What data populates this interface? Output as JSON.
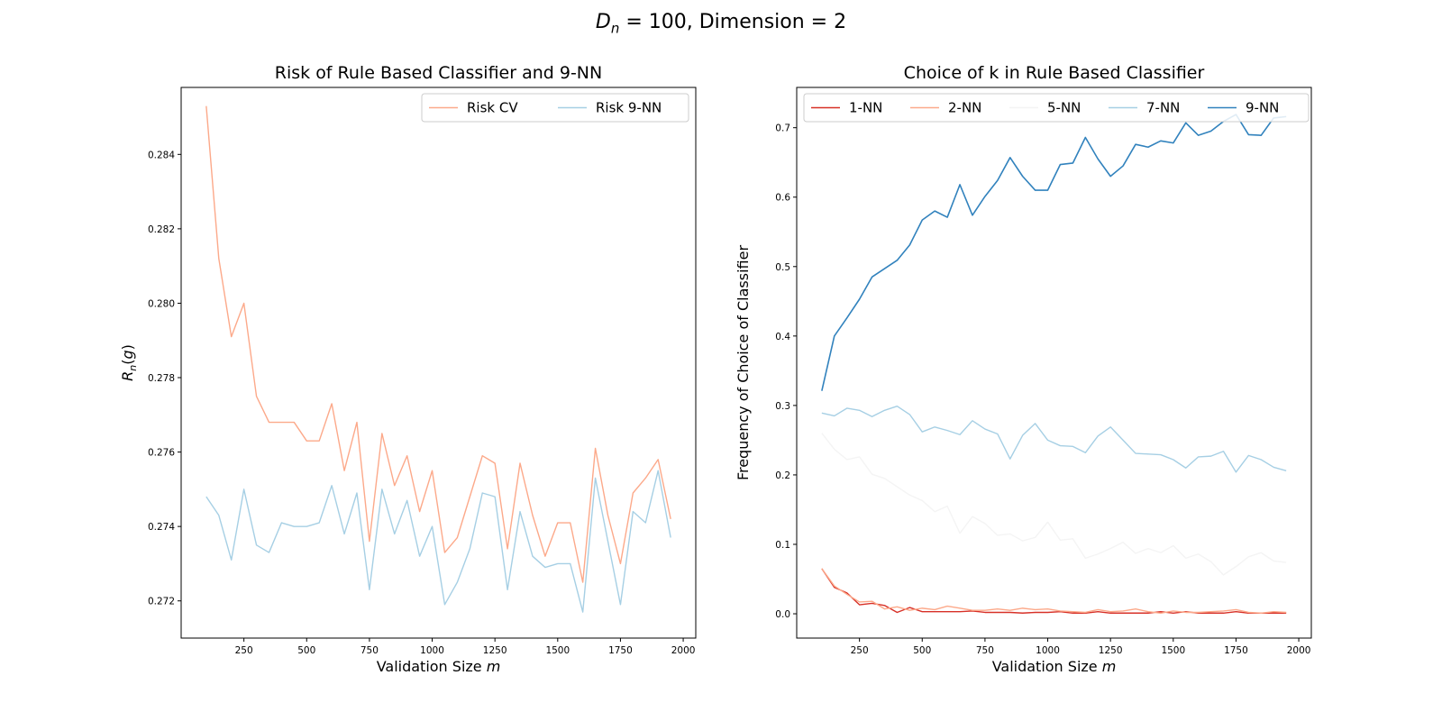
{
  "suptitle": {
    "lhs_symbol": "D",
    "lhs_subscript": "n",
    "rest": " = 100, Dimension = 2"
  },
  "chart_data": [
    {
      "type": "line",
      "title": "Risk of Rule Based Classifier and 9-NN",
      "xlabel": "Validation Size m",
      "ylabel": "R_n(g)",
      "xlim": [
        0,
        2050
      ],
      "ylim": [
        0.271,
        0.2858
      ],
      "xticks": [
        250,
        500,
        750,
        1000,
        1250,
        1500,
        1750,
        2000
      ],
      "yticks": [
        0.272,
        0.274,
        0.276,
        0.278,
        0.28,
        0.282,
        0.284
      ],
      "ytick_labels": [
        "0.272",
        "0.274",
        "0.276",
        "0.278",
        "0.280",
        "0.282",
        "0.284"
      ],
      "legend_position": "upper-right",
      "x": [
        100,
        150,
        200,
        250,
        300,
        350,
        400,
        450,
        500,
        550,
        600,
        650,
        700,
        750,
        800,
        850,
        900,
        950,
        1000,
        1050,
        1100,
        1150,
        1200,
        1250,
        1300,
        1350,
        1400,
        1450,
        1500,
        1550,
        1600,
        1650,
        1700,
        1750,
        1800,
        1850,
        1900,
        1950
      ],
      "series": [
        {
          "name": "Risk CV",
          "color": "#fca98a",
          "values": [
            0.2853,
            0.2812,
            0.2791,
            0.28,
            0.2775,
            0.2768,
            0.2768,
            0.2768,
            0.2763,
            0.2763,
            0.2773,
            0.2755,
            0.2768,
            0.2736,
            0.2765,
            0.2751,
            0.2759,
            0.2744,
            0.2755,
            0.2733,
            0.2737,
            0.2748,
            0.2759,
            0.2757,
            0.2734,
            0.2757,
            0.2743,
            0.2732,
            0.2741,
            0.2741,
            0.2725,
            0.2761,
            0.2743,
            0.273,
            0.2749,
            0.2753,
            0.2758,
            0.2742
          ]
        },
        {
          "name": "Risk 9-NN",
          "color": "#a6cfe4",
          "values": [
            0.2748,
            0.2743,
            0.2731,
            0.275,
            0.2735,
            0.2733,
            0.2741,
            0.274,
            0.274,
            0.2741,
            0.2751,
            0.2738,
            0.2749,
            0.2723,
            0.275,
            0.2738,
            0.2747,
            0.2732,
            0.274,
            0.2719,
            0.2725,
            0.2734,
            0.2749,
            0.2748,
            0.2723,
            0.2744,
            0.2732,
            0.2729,
            0.273,
            0.273,
            0.2717,
            0.2753,
            0.2736,
            0.2719,
            0.2744,
            0.2741,
            0.2755,
            0.2737
          ]
        }
      ]
    },
    {
      "type": "line",
      "title": "Choice of k in Rule Based Classifier",
      "xlabel": "Validation Size m",
      "ylabel": "Frequency of Choice of Classifier",
      "xlim": [
        0,
        2050
      ],
      "ylim": [
        -0.035,
        0.758
      ],
      "xticks": [
        250,
        500,
        750,
        1000,
        1250,
        1500,
        1750,
        2000
      ],
      "yticks": [
        0.0,
        0.1,
        0.2,
        0.3,
        0.4,
        0.5,
        0.6,
        0.7
      ],
      "ytick_labels": [
        "0.0",
        "0.1",
        "0.2",
        "0.3",
        "0.4",
        "0.5",
        "0.6",
        "0.7"
      ],
      "legend_position": "top",
      "x": [
        100,
        150,
        200,
        250,
        300,
        350,
        400,
        450,
        500,
        550,
        600,
        650,
        700,
        750,
        800,
        850,
        900,
        950,
        1000,
        1050,
        1100,
        1150,
        1200,
        1250,
        1300,
        1350,
        1400,
        1450,
        1500,
        1550,
        1600,
        1650,
        1700,
        1750,
        1800,
        1850,
        1900,
        1950
      ],
      "series": [
        {
          "name": "1-NN",
          "color": "#d73027",
          "values": [
            0.065,
            0.038,
            0.03,
            0.013,
            0.015,
            0.012,
            0.002,
            0.009,
            0.003,
            0.003,
            0.003,
            0.003,
            0.004,
            0.002,
            0.002,
            0.002,
            0.001,
            0.002,
            0.002,
            0.003,
            0.001,
            0.001,
            0.003,
            0.001,
            0.001,
            0.001,
            0.001,
            0.003,
            0.001,
            0.003,
            0.001,
            0.001,
            0.001,
            0.003,
            0.001,
            0.001,
            0.001,
            0.001
          ]
        },
        {
          "name": "2-NN",
          "color": "#fca98a",
          "values": [
            0.065,
            0.04,
            0.028,
            0.017,
            0.018,
            0.007,
            0.01,
            0.005,
            0.008,
            0.006,
            0.011,
            0.008,
            0.005,
            0.005,
            0.007,
            0.005,
            0.008,
            0.006,
            0.007,
            0.004,
            0.003,
            0.002,
            0.006,
            0.003,
            0.004,
            0.007,
            0.003,
            0.001,
            0.004,
            0.002,
            0.002,
            0.003,
            0.004,
            0.006,
            0.002,
            0.001,
            0.003,
            0.002
          ]
        },
        {
          "name": "5-NN",
          "color": "#f4f4f4",
          "values": [
            0.26,
            0.237,
            0.222,
            0.226,
            0.201,
            0.195,
            0.183,
            0.171,
            0.163,
            0.147,
            0.155,
            0.116,
            0.14,
            0.13,
            0.113,
            0.115,
            0.105,
            0.11,
            0.132,
            0.106,
            0.108,
            0.08,
            0.086,
            0.094,
            0.103,
            0.087,
            0.094,
            0.088,
            0.098,
            0.08,
            0.086,
            0.075,
            0.056,
            0.068,
            0.082,
            0.088,
            0.076,
            0.074
          ]
        },
        {
          "name": "7-NN",
          "color": "#a6cfe4",
          "values": [
            0.289,
            0.285,
            0.296,
            0.293,
            0.284,
            0.293,
            0.299,
            0.287,
            0.262,
            0.269,
            0.264,
            0.258,
            0.278,
            0.266,
            0.259,
            0.223,
            0.257,
            0.274,
            0.25,
            0.242,
            0.241,
            0.232,
            0.256,
            0.269,
            0.25,
            0.231,
            0.23,
            0.229,
            0.222,
            0.21,
            0.226,
            0.227,
            0.234,
            0.204,
            0.228,
            0.222,
            0.211,
            0.206
          ]
        },
        {
          "name": "9-NN",
          "color": "#3182bd",
          "values": [
            0.321,
            0.4,
            0.426,
            0.453,
            0.485,
            0.497,
            0.509,
            0.531,
            0.567,
            0.58,
            0.571,
            0.618,
            0.574,
            0.601,
            0.624,
            0.657,
            0.63,
            0.61,
            0.61,
            0.647,
            0.649,
            0.686,
            0.655,
            0.63,
            0.645,
            0.676,
            0.672,
            0.681,
            0.678,
            0.707,
            0.689,
            0.695,
            0.709,
            0.719,
            0.69,
            0.689,
            0.714,
            0.716
          ]
        }
      ]
    }
  ]
}
